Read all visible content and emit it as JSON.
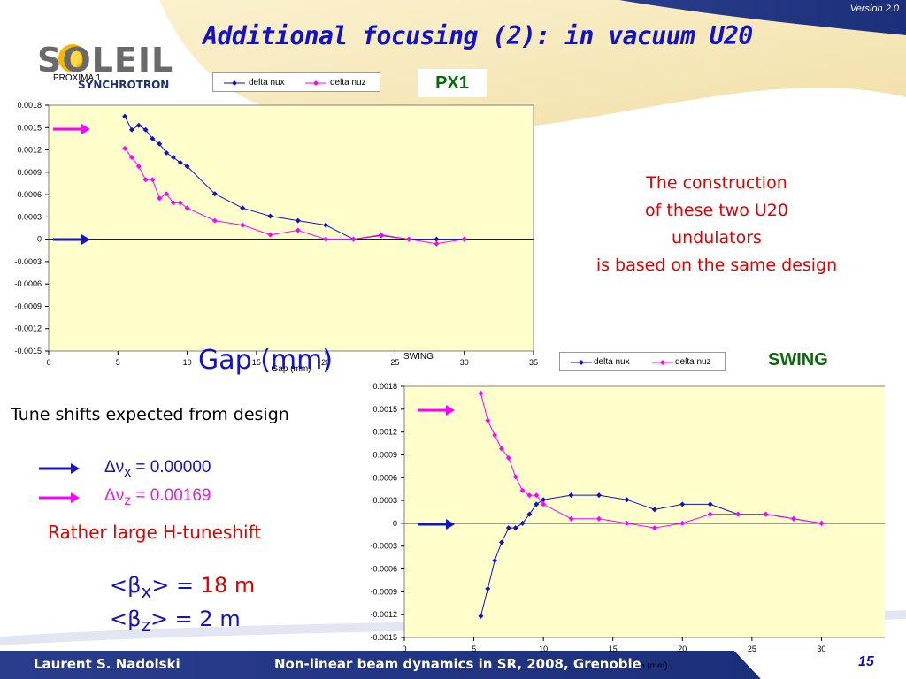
{
  "version": "Version 2.0",
  "title": "Additional focusing (2): in vacuum U20",
  "logo": {
    "text": "SOLEIL",
    "sub": "SYNCHROTRON"
  },
  "proxima_label": "PROXIMA 1",
  "px1_label": "PX1",
  "swing_label": "SWING",
  "swing_small_label": "SWING",
  "gap_label": "Gap (mm)",
  "note": [
    "The construction",
    "of these two U20",
    "undulators",
    "is based on the same design"
  ],
  "tune_title": "Tune shifts expected from design",
  "formulas": {
    "nux": {
      "sym": "Δν",
      "sub": "x",
      "value": " = 0.00000"
    },
    "nuz": {
      "sym": "Δν",
      "sub": "z",
      "value": " = 0.00169"
    }
  },
  "rather": "Rather large H-tuneshift",
  "betas": [
    {
      "open": "<β",
      "sub": "x",
      "close": "> = ",
      "value": "18 m"
    },
    {
      "open": "<β",
      "sub": "z",
      "close": "> = ",
      "value": "2 m"
    }
  ],
  "footer": {
    "author": "Laurent S. Nadolski",
    "title": "Non-linear beam dynamics in SR,  2008, Grenoble",
    "page": "15"
  },
  "colors": {
    "nux": "#1212c8",
    "nuz": "#ff00ff",
    "plot_bg": "#ffffcc",
    "footer": "#1c2f7a"
  },
  "chart_data": [
    {
      "type": "line",
      "name": "PX1",
      "title": "",
      "xlabel": "Gap (mm)",
      "ylabel": "",
      "xlim": [
        0,
        35
      ],
      "ylim": [
        -0.0015,
        0.0018
      ],
      "xticks": [
        "0",
        "5",
        "10",
        "15",
        "20",
        "25",
        "30",
        "35"
      ],
      "yticks": [
        "0.0018",
        "0.0015",
        "0.0012",
        "0.0009",
        "0.0006",
        "0.0003",
        "0",
        "-0.0003",
        "-0.0006",
        "-0.0009",
        "-0.0012",
        "-0.0015"
      ],
      "legend": "top",
      "series": [
        {
          "name": "delta nux",
          "color": "#1212c8",
          "marker": "diamond",
          "x": [
            5.5,
            6,
            6.5,
            7,
            7.5,
            8,
            8.5,
            9,
            9.5,
            10,
            12,
            14,
            16,
            18,
            20,
            22,
            24,
            26,
            28,
            30
          ],
          "y": [
            0.00165,
            0.00147,
            0.00153,
            0.00147,
            0.00135,
            0.00128,
            0.00116,
            0.0011,
            0.00103,
            0.00098,
            0.00061,
            0.00042,
            0.00031,
            0.00025,
            0.00019,
            0.0,
            5e-05,
            0.0,
            0.0,
            0.0
          ]
        },
        {
          "name": "delta nuz",
          "color": "#ff00ff",
          "marker": "diamond",
          "x": [
            5.5,
            6,
            6.5,
            7,
            7.5,
            8,
            8.5,
            9,
            9.5,
            10,
            12,
            14,
            16,
            18,
            20,
            22,
            24,
            26,
            28,
            30
          ],
          "y": [
            0.00122,
            0.0011,
            0.00098,
            0.0008,
            0.0008,
            0.00055,
            0.00061,
            0.00049,
            0.00049,
            0.00042,
            0.00025,
            0.00019,
            6e-05,
            0.00012,
            0.0,
            0.0,
            6e-05,
            0.0,
            -6e-05,
            0.0
          ]
        }
      ]
    },
    {
      "type": "line",
      "name": "SWING",
      "title": "",
      "xlabel": "Gap (mm)",
      "ylabel": "",
      "xlim": [
        0,
        35
      ],
      "ylim": [
        -0.0015,
        0.0018
      ],
      "xticks": [
        "0",
        "5",
        "10",
        "15",
        "20",
        "25",
        "30",
        "35"
      ],
      "yticks": [
        "0.0018",
        "0.0015",
        "0.0012",
        "0.0009",
        "0.0006",
        "0.0003",
        "0",
        "-0.0003",
        "-0.0006",
        "-0.0009",
        "-0.0012",
        "-0.0015"
      ],
      "legend": "top",
      "series": [
        {
          "name": "delta nux",
          "color": "#1212c8",
          "marker": "diamond",
          "x": [
            5.5,
            6,
            6.5,
            7,
            7.5,
            8,
            8.5,
            9,
            9.5,
            10,
            12,
            14,
            16,
            18,
            20,
            22,
            24,
            26,
            28,
            30
          ],
          "y": [
            -0.00122,
            -0.00086,
            -0.00049,
            -0.00025,
            -6e-05,
            -6e-05,
            0.0,
            0.00012,
            0.00025,
            0.00031,
            0.00037,
            0.00037,
            0.00031,
            0.00018,
            0.00025,
            0.00025,
            0.00012,
            0.00012,
            6e-05,
            0.0
          ]
        },
        {
          "name": "delta nuz",
          "color": "#ff00ff",
          "marker": "diamond",
          "x": [
            5.5,
            6,
            6.5,
            7,
            7.5,
            8,
            8.5,
            9,
            9.5,
            10,
            12,
            14,
            16,
            18,
            20,
            22,
            24,
            26,
            28,
            30
          ],
          "y": [
            0.00171,
            0.00135,
            0.00116,
            0.00098,
            0.00086,
            0.00061,
            0.00043,
            0.00037,
            0.00037,
            0.00025,
            6e-05,
            6e-05,
            0.0,
            -6e-05,
            0.0,
            0.00012,
            0.00012,
            0.00012,
            6e-05,
            0.0
          ]
        }
      ]
    }
  ]
}
